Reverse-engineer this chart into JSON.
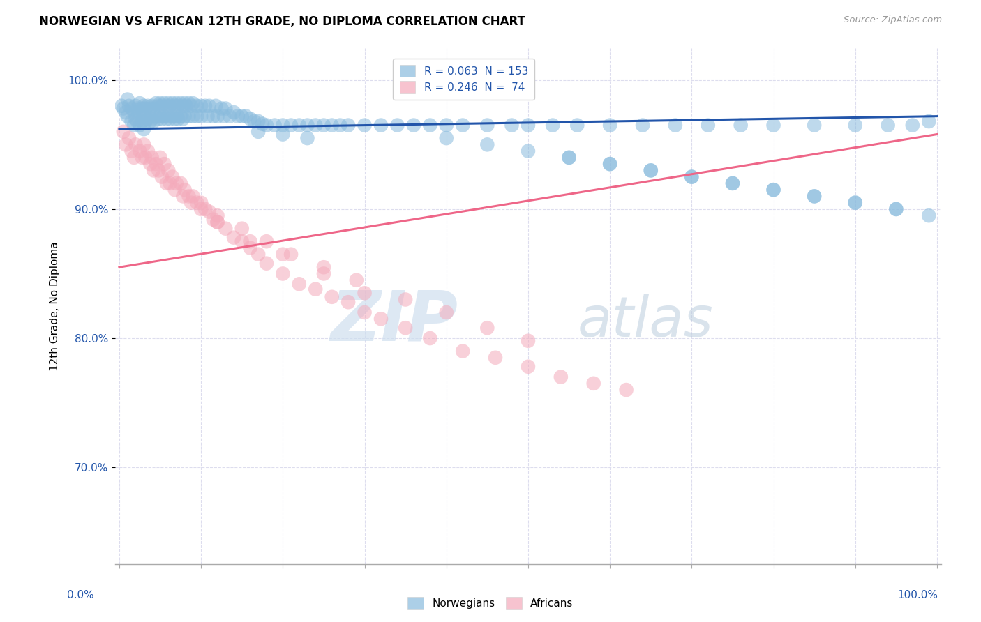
{
  "title": "NORWEGIAN VS AFRICAN 12TH GRADE, NO DIPLOMA CORRELATION CHART",
  "source": "Source: ZipAtlas.com",
  "ylabel": "12th Grade, No Diploma",
  "watermark_zip": "ZIP",
  "watermark_atlas": "atlas",
  "blue_color": "#89BBDD",
  "pink_color": "#F4AABB",
  "blue_line_color": "#2255AA",
  "pink_line_color": "#EE6688",
  "legend_blue_r": "R = 0.063",
  "legend_blue_n": "N = 153",
  "legend_pink_r": "R = 0.246",
  "legend_pink_n": "N =  74",
  "blue_trend_x0": 0.0,
  "blue_trend_y0": 0.962,
  "blue_trend_x1": 1.0,
  "blue_trend_y1": 0.972,
  "pink_trend_x0": 0.0,
  "pink_trend_y0": 0.855,
  "pink_trend_x1": 1.0,
  "pink_trend_y1": 0.958,
  "xmin": 0.0,
  "xmax": 1.0,
  "ymin": 0.625,
  "ymax": 1.025,
  "ytick_positions": [
    0.7,
    0.8,
    0.9,
    1.0
  ],
  "ytick_labels": [
    "70.0%",
    "80.0%",
    "90.0%",
    "100.0%"
  ],
  "grid_color": "#DDDDEE",
  "blue_scatter_x": [
    0.003,
    0.005,
    0.008,
    0.01,
    0.01,
    0.012,
    0.015,
    0.015,
    0.018,
    0.018,
    0.02,
    0.02,
    0.022,
    0.022,
    0.025,
    0.025,
    0.025,
    0.028,
    0.028,
    0.03,
    0.03,
    0.03,
    0.032,
    0.032,
    0.035,
    0.035,
    0.038,
    0.038,
    0.04,
    0.04,
    0.042,
    0.042,
    0.045,
    0.045,
    0.048,
    0.048,
    0.05,
    0.05,
    0.052,
    0.052,
    0.055,
    0.055,
    0.058,
    0.058,
    0.06,
    0.06,
    0.062,
    0.062,
    0.065,
    0.065,
    0.068,
    0.068,
    0.07,
    0.07,
    0.072,
    0.072,
    0.075,
    0.075,
    0.078,
    0.078,
    0.08,
    0.08,
    0.082,
    0.085,
    0.085,
    0.088,
    0.09,
    0.09,
    0.095,
    0.095,
    0.1,
    0.1,
    0.105,
    0.108,
    0.11,
    0.115,
    0.118,
    0.12,
    0.125,
    0.128,
    0.13,
    0.135,
    0.14,
    0.145,
    0.15,
    0.155,
    0.16,
    0.165,
    0.17,
    0.175,
    0.18,
    0.19,
    0.2,
    0.21,
    0.22,
    0.23,
    0.24,
    0.25,
    0.26,
    0.27,
    0.28,
    0.3,
    0.32,
    0.34,
    0.36,
    0.38,
    0.4,
    0.42,
    0.45,
    0.48,
    0.5,
    0.53,
    0.56,
    0.6,
    0.64,
    0.68,
    0.72,
    0.76,
    0.8,
    0.85,
    0.9,
    0.94,
    0.97,
    0.99,
    0.55,
    0.6,
    0.65,
    0.7,
    0.75,
    0.8,
    0.85,
    0.9,
    0.95,
    0.99,
    0.4,
    0.45,
    0.5,
    0.55,
    0.6,
    0.65,
    0.7,
    0.75,
    0.8,
    0.85,
    0.9,
    0.95,
    0.17,
    0.2,
    0.23
  ],
  "blue_scatter_y": [
    0.98,
    0.978,
    0.975,
    0.985,
    0.972,
    0.98,
    0.978,
    0.968,
    0.975,
    0.965,
    0.98,
    0.97,
    0.978,
    0.968,
    0.982,
    0.975,
    0.965,
    0.978,
    0.968,
    0.98,
    0.972,
    0.962,
    0.978,
    0.968,
    0.98,
    0.97,
    0.978,
    0.968,
    0.98,
    0.97,
    0.978,
    0.968,
    0.982,
    0.972,
    0.98,
    0.97,
    0.982,
    0.972,
    0.98,
    0.97,
    0.982,
    0.972,
    0.98,
    0.97,
    0.982,
    0.972,
    0.98,
    0.97,
    0.982,
    0.972,
    0.98,
    0.97,
    0.982,
    0.972,
    0.98,
    0.97,
    0.982,
    0.972,
    0.98,
    0.97,
    0.982,
    0.972,
    0.98,
    0.982,
    0.972,
    0.98,
    0.982,
    0.972,
    0.98,
    0.972,
    0.98,
    0.972,
    0.98,
    0.972,
    0.98,
    0.972,
    0.98,
    0.972,
    0.978,
    0.972,
    0.978,
    0.972,
    0.975,
    0.972,
    0.972,
    0.972,
    0.97,
    0.968,
    0.968,
    0.966,
    0.965,
    0.965,
    0.965,
    0.965,
    0.965,
    0.965,
    0.965,
    0.965,
    0.965,
    0.965,
    0.965,
    0.965,
    0.965,
    0.965,
    0.965,
    0.965,
    0.965,
    0.965,
    0.965,
    0.965,
    0.965,
    0.965,
    0.965,
    0.965,
    0.965,
    0.965,
    0.965,
    0.965,
    0.965,
    0.965,
    0.965,
    0.965,
    0.965,
    0.968,
    0.94,
    0.935,
    0.93,
    0.925,
    0.92,
    0.915,
    0.91,
    0.905,
    0.9,
    0.895,
    0.955,
    0.95,
    0.945,
    0.94,
    0.935,
    0.93,
    0.925,
    0.92,
    0.915,
    0.91,
    0.905,
    0.9,
    0.96,
    0.958,
    0.955
  ],
  "pink_scatter_x": [
    0.005,
    0.008,
    0.012,
    0.015,
    0.018,
    0.02,
    0.025,
    0.028,
    0.03,
    0.032,
    0.035,
    0.038,
    0.04,
    0.042,
    0.045,
    0.048,
    0.05,
    0.052,
    0.055,
    0.058,
    0.06,
    0.062,
    0.065,
    0.068,
    0.07,
    0.075,
    0.078,
    0.08,
    0.085,
    0.088,
    0.09,
    0.095,
    0.1,
    0.105,
    0.11,
    0.115,
    0.12,
    0.13,
    0.14,
    0.15,
    0.16,
    0.17,
    0.18,
    0.2,
    0.22,
    0.24,
    0.26,
    0.28,
    0.3,
    0.32,
    0.35,
    0.38,
    0.42,
    0.46,
    0.5,
    0.54,
    0.58,
    0.62,
    0.1,
    0.12,
    0.15,
    0.18,
    0.21,
    0.25,
    0.29,
    0.35,
    0.4,
    0.45,
    0.5,
    0.12,
    0.16,
    0.2,
    0.25,
    0.3
  ],
  "pink_scatter_y": [
    0.96,
    0.95,
    0.955,
    0.945,
    0.94,
    0.95,
    0.945,
    0.94,
    0.95,
    0.94,
    0.945,
    0.935,
    0.94,
    0.93,
    0.935,
    0.93,
    0.94,
    0.925,
    0.935,
    0.92,
    0.93,
    0.92,
    0.925,
    0.915,
    0.92,
    0.92,
    0.91,
    0.915,
    0.91,
    0.905,
    0.91,
    0.905,
    0.9,
    0.9,
    0.898,
    0.892,
    0.89,
    0.885,
    0.878,
    0.875,
    0.87,
    0.865,
    0.858,
    0.85,
    0.842,
    0.838,
    0.832,
    0.828,
    0.82,
    0.815,
    0.808,
    0.8,
    0.79,
    0.785,
    0.778,
    0.77,
    0.765,
    0.76,
    0.905,
    0.895,
    0.885,
    0.875,
    0.865,
    0.855,
    0.845,
    0.83,
    0.82,
    0.808,
    0.798,
    0.89,
    0.875,
    0.865,
    0.85,
    0.835
  ]
}
